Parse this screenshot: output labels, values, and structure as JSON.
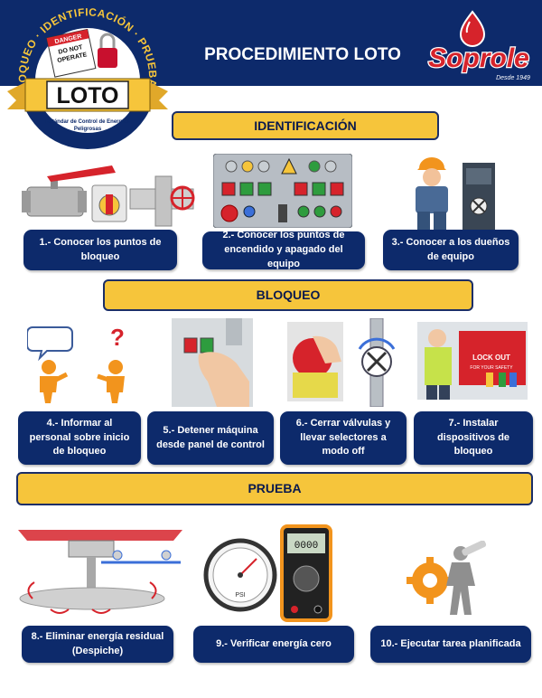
{
  "header": {
    "title": "PROCEDIMIENTO LOTO"
  },
  "badge": {
    "ring_text": "BLOQUEO · IDENTIFICACIÓN · PRUEBA A",
    "tag_line1": "DANGER",
    "tag_line2": "DO NOT",
    "tag_line3": "OPERATE",
    "main": "LOTO",
    "subtitle1": "Estándar de Control de Energías",
    "subtitle2": "Peligrosas"
  },
  "brand": {
    "name": "Soprole",
    "since": "Desde 1949"
  },
  "sections": {
    "identificacion": "IDENTIFICACIÓN",
    "bloqueo": "BLOQUEO",
    "prueba": "PRUEBA"
  },
  "steps": {
    "s1": "1.- Conocer los puntos de bloqueo",
    "s2": "2.- Conocer los puntos de encendido y apagado del equipo",
    "s3": "3.- Conocer a los dueños de equipo",
    "s4": "4.- Informar al personal sobre inicio de bloqueo",
    "s5": "5.- Detener máquina desde panel de control",
    "s6": "6.- Cerrar válvulas y llevar selectores a modo off",
    "s7": "7.- Instalar dispositivos de bloqueo",
    "s8": "8.- Eliminar energía residual (Despiche)",
    "s9": "9.- Verificar energía cero",
    "s10": "10.- Ejecutar tarea planificada"
  },
  "illustrations": {
    "lock_tag_1": "LOCK OUT",
    "lock_tag_2": "FOR YOUR SAFETY",
    "multimeter_display": "0000",
    "gauge_label": "PSI"
  },
  "colors": {
    "navy": "#0d2a6b",
    "yellow": "#f6c53b",
    "red": "#d6232b"
  }
}
